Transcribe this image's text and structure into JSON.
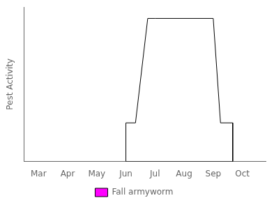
{
  "chart_data": {
    "type": "area",
    "ylabel": "Pest Activity",
    "x": [
      6.0,
      6.0,
      6.33,
      6.75,
      7.0,
      9.0,
      9.25,
      9.67,
      9.67,
      6.0
    ],
    "series": [
      {
        "name": "Fall armyworm",
        "color": "#ff00ff",
        "values": [
          0.0,
          0.27,
          0.27,
          1.0,
          1.0,
          1.0,
          0.27,
          0.27,
          0.0,
          0.0
        ]
      }
    ],
    "xlim": [
      2.5,
      10.8
    ],
    "xticks": [
      {
        "value": 3,
        "label": "Mar"
      },
      {
        "value": 4,
        "label": "Apr"
      },
      {
        "value": 5,
        "label": "May"
      },
      {
        "value": 6,
        "label": "Jun"
      },
      {
        "value": 7,
        "label": "Jul"
      },
      {
        "value": 8,
        "label": "Aug"
      },
      {
        "value": 9,
        "label": "Sep"
      },
      {
        "value": 10,
        "label": "Oct"
      }
    ],
    "ylim": [
      0,
      1.08
    ],
    "yticks": [],
    "grid": false,
    "legend": "bottom",
    "tick_labels": "x"
  }
}
